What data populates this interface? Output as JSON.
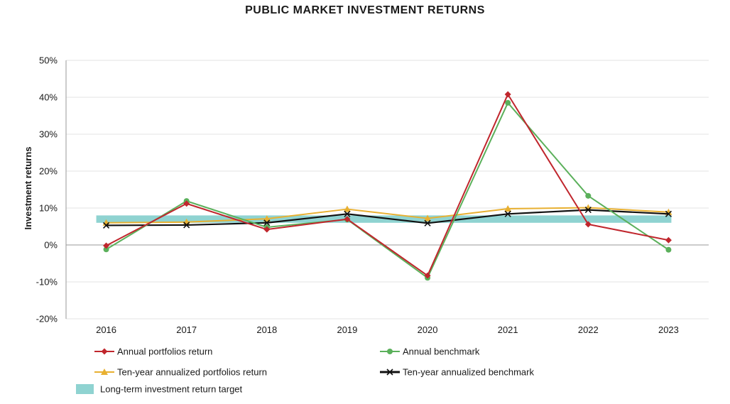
{
  "chart_data": {
    "type": "line",
    "title": "PUBLIC MARKET INVESTMENT RETURNS",
    "xlabel": "",
    "ylabel": "Investment returns",
    "categories": [
      "2016",
      "2017",
      "2018",
      "2019",
      "2020",
      "2021",
      "2022",
      "2023"
    ],
    "ylim": [
      -20,
      50
    ],
    "yticks": [
      -20,
      -10,
      0,
      10,
      20,
      30,
      40,
      50
    ],
    "ytick_labels": [
      "-20%",
      "-10%",
      "0%",
      "10%",
      "20%",
      "30%",
      "40%",
      "50%"
    ],
    "grid": "horizontal",
    "legend_position": "bottom",
    "series": [
      {
        "name": "Annual portfolios return",
        "color": "#c0262d",
        "marker": "diamond",
        "values": [
          -0.2,
          11.2,
          4.2,
          7.0,
          -8.3,
          40.8,
          5.6,
          1.3
        ]
      },
      {
        "name": "Annual benchmark",
        "color": "#5bb05b",
        "marker": "circle",
        "values": [
          -1.2,
          11.9,
          4.8,
          6.9,
          -8.9,
          38.5,
          13.3,
          -1.3
        ]
      },
      {
        "name": "Ten-year annualized portfolios return",
        "color": "#e8b031",
        "marker": "triangle",
        "values": [
          6.0,
          6.2,
          7.1,
          9.7,
          7.2,
          9.8,
          10.1,
          8.9
        ]
      },
      {
        "name": "Ten-year annualized benchmark",
        "color": "#111111",
        "marker": "x",
        "values": [
          5.3,
          5.4,
          6.0,
          8.4,
          5.9,
          8.4,
          9.5,
          8.4
        ]
      }
    ],
    "band": {
      "name": "Long-term investment return target",
      "color": "#8fd3d1",
      "range": [
        6.0,
        8.0
      ]
    }
  }
}
